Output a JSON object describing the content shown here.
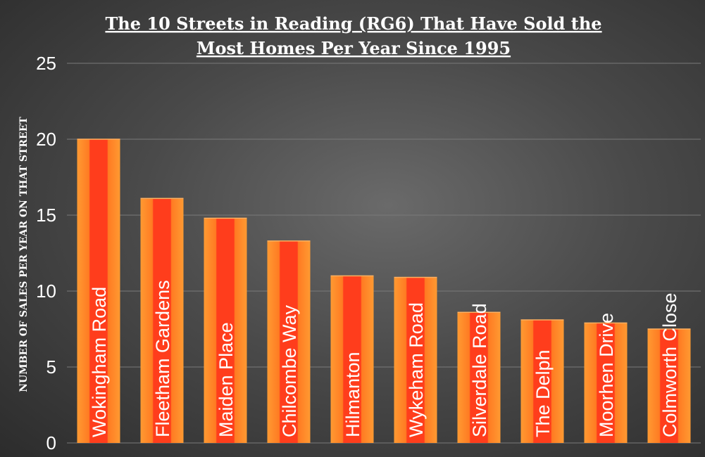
{
  "chart_data": {
    "type": "bar",
    "title_lines": [
      "The 10 Streets in Reading (RG6) That Have Sold the",
      "Most Homes Per Year Since 1995"
    ],
    "ylabel": "NUMBER OF SALES PER YEAR ON THAT STREET",
    "xlabel": "",
    "ylim": [
      0,
      25
    ],
    "yticks": [
      0,
      5,
      10,
      15,
      20,
      25
    ],
    "grid": true,
    "categories": [
      "Wokingham Road",
      "Fleetham Gardens",
      "Maiden Place",
      "Chilcombe Way",
      "Hilmanton",
      "Wykeham Road",
      "Silverdale Road",
      "The Delph",
      "Moorhen Drive",
      "Colmworth Close"
    ],
    "values": [
      20,
      16.1,
      14.8,
      13.3,
      11,
      10.9,
      8.6,
      8.1,
      7.9,
      7.5
    ],
    "colors": {
      "bar_outer": "#ff9830",
      "bar_inner": "#ff3a1e",
      "grid": "#7a7a7a",
      "text": "#ffffff"
    }
  }
}
